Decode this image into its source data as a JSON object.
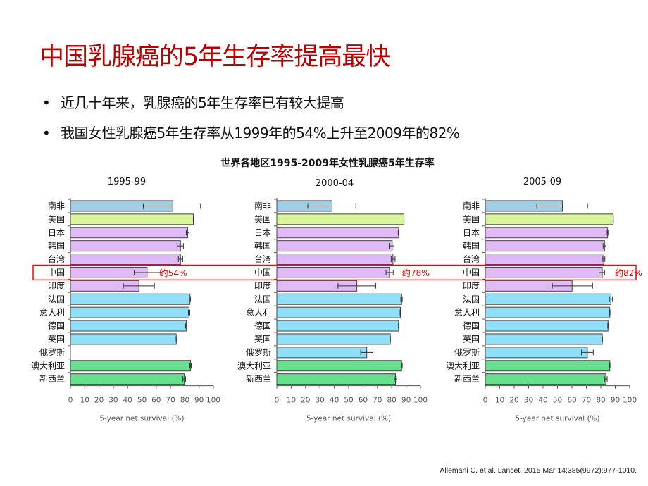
{
  "slide": {
    "title": "中国乳腺癌的5年生存率提高最快",
    "bullets": [
      "近几十年来，乳腺癌的5年生存率已有较大提高",
      "我国女性乳腺癌5年生存率从1999年的54%上升至2009年的82%"
    ],
    "citation": "Allemani C, et al. Lancet. 2015 Mar 14;385(9972):977-1010.",
    "title_color": "#c00000",
    "highlight_color": "#ff0000"
  },
  "chart_data": {
    "type": "bar",
    "orientation": "horizontal",
    "title": "世界各地区1995-2009年女性乳腺癌5年生存率",
    "xlabel": "5-year net survival (%)",
    "xlim": [
      0,
      100
    ],
    "xticks": [
      0,
      10,
      20,
      30,
      40,
      50,
      60,
      70,
      80,
      90,
      100
    ],
    "categories": [
      "南非",
      "美国",
      "日本",
      "韩国",
      "台湾",
      "中国",
      "印度",
      "法国",
      "意大利",
      "德国",
      "英国",
      "俄罗斯",
      "澳大利亚",
      "新西兰"
    ],
    "category_colors": [
      "#a3cde3",
      "#d8f59c",
      "#e0baf5",
      "#e0baf5",
      "#e0baf5",
      "#e0baf5",
      "#e0baf5",
      "#8fdff8",
      "#8fdff8",
      "#8fdff8",
      "#8fdff8",
      "#8fdff8",
      "#66e08c",
      "#66e08c"
    ],
    "error_bars": true,
    "highlight_category": "中国",
    "panels": [
      {
        "period": "1995-99",
        "annotation": "约54%",
        "values": [
          71.6,
          86,
          82,
          77,
          77,
          53.6,
          47.9,
          83.6,
          83,
          81,
          74,
          null,
          84,
          79.5
        ],
        "ci_low": [
          51,
          86,
          81,
          74.6,
          75.5,
          44.6,
          37,
          83,
          82.5,
          80.5,
          74,
          null,
          83.5,
          78.5
        ],
        "ci_high": [
          91,
          86,
          83,
          79,
          78.5,
          63,
          58.7,
          84,
          83.5,
          81.5,
          74,
          null,
          84.5,
          80.5
        ]
      },
      {
        "period": "2000-04",
        "annotation": "约78%",
        "values": [
          38.5,
          88.5,
          84.8,
          80.3,
          80.8,
          78.4,
          55.7,
          86.9,
          86,
          84.8,
          79,
          62.6,
          86.9,
          82.6
        ],
        "ci_low": [
          21.6,
          88.5,
          84.5,
          78.2,
          79.6,
          76,
          42.6,
          86.3,
          85.8,
          84.6,
          79,
          58.4,
          86.5,
          81.8
        ],
        "ci_high": [
          55,
          88.5,
          85,
          81.6,
          82.3,
          81,
          68.9,
          87.3,
          86.2,
          85,
          79,
          66.9,
          87.3,
          83.5
        ]
      },
      {
        "period": "2005-09",
        "annotation": "约82%",
        "values": [
          53.4,
          88.6,
          84.7,
          82.6,
          82.1,
          81,
          60.1,
          87,
          86.2,
          85,
          81,
          70.7,
          86.2,
          83.5
        ],
        "ci_low": [
          35.7,
          88.6,
          84.4,
          81.6,
          81.4,
          78.8,
          46.4,
          86,
          86,
          84.8,
          80.8,
          66.6,
          86,
          82.6
        ],
        "ci_high": [
          70.8,
          88.6,
          85,
          83.6,
          82.8,
          82.6,
          74.3,
          88,
          86.4,
          85.2,
          81.2,
          74.8,
          86.4,
          84.4
        ]
      }
    ]
  }
}
